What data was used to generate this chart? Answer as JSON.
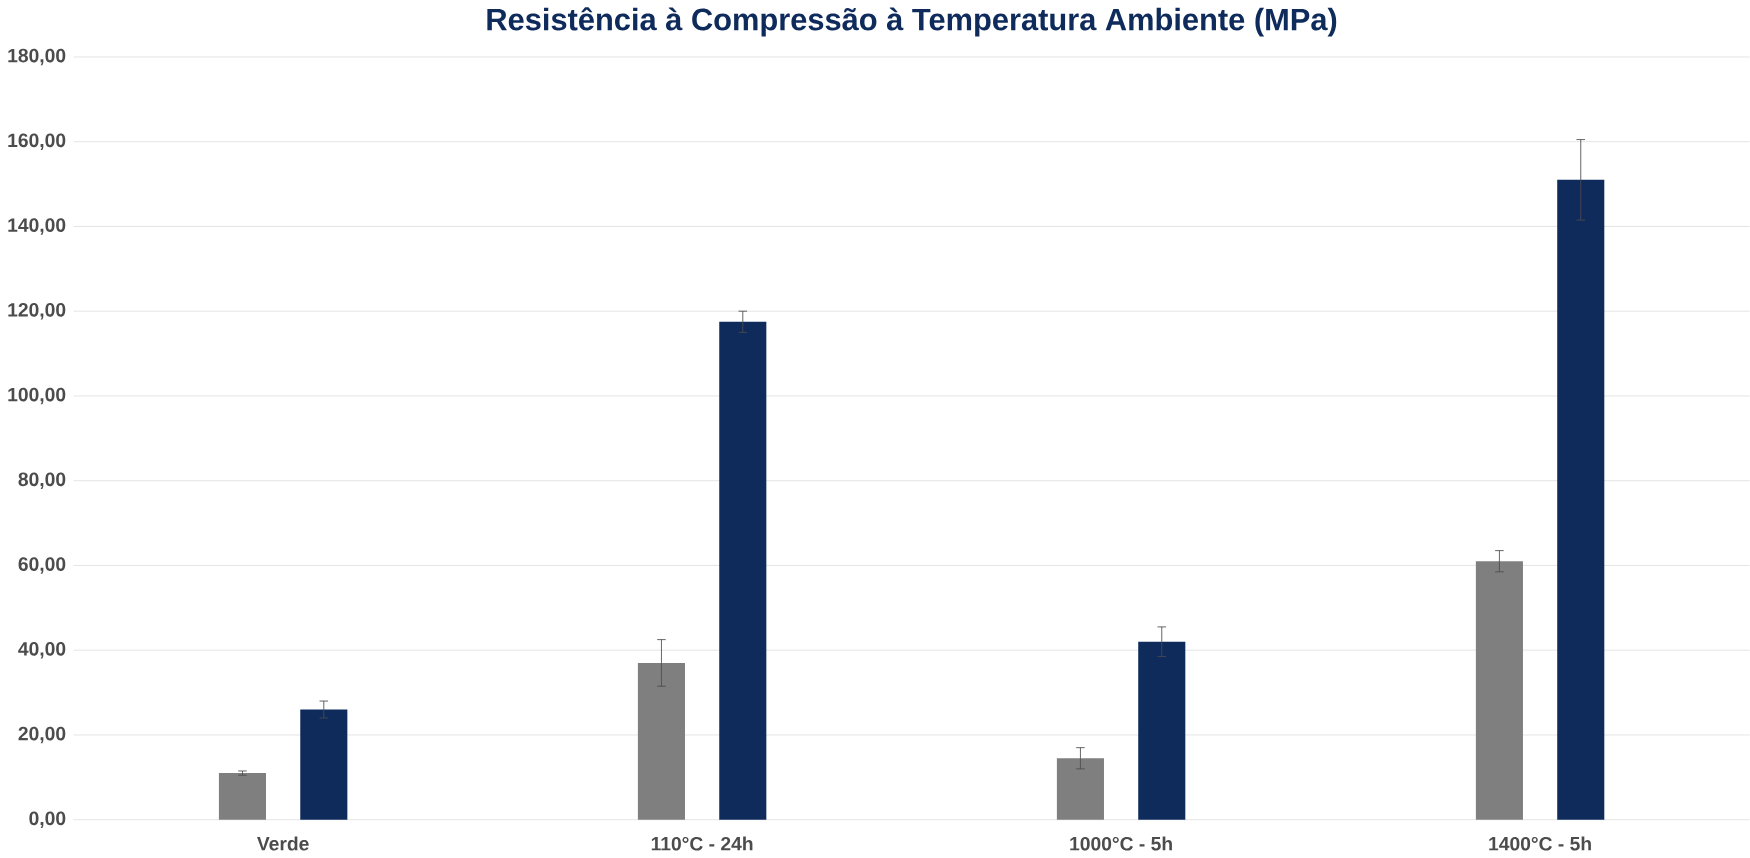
{
  "chart_data": {
    "type": "bar",
    "title": "Resistência à Compressão à Temperatura Ambiente (MPa)",
    "categories": [
      "Verde",
      "110°C - 24h",
      "1000°C - 5h",
      "1400°C - 5h"
    ],
    "series": [
      {
        "color": "#7f7f7f",
        "values": [
          11,
          37,
          14.5,
          61
        ],
        "errors": [
          0.5,
          5.5,
          2.5,
          2.5
        ]
      },
      {
        "color": "#0e2b5c",
        "values": [
          26,
          117.5,
          42,
          151
        ],
        "errors": [
          2,
          2.5,
          3.5,
          9.5
        ]
      }
    ],
    "ylim": [
      0,
      180
    ],
    "yticks": [
      {
        "value": 0,
        "label": "0,00"
      },
      {
        "value": 20,
        "label": "20,00"
      },
      {
        "value": 40,
        "label": "40,00"
      },
      {
        "value": 60,
        "label": "60,00"
      },
      {
        "value": 80,
        "label": "80,00"
      },
      {
        "value": 100,
        "label": "100,00"
      },
      {
        "value": 120,
        "label": "120,00"
      },
      {
        "value": 140,
        "label": "140,00"
      },
      {
        "value": 160,
        "label": "160,00"
      },
      {
        "value": 180,
        "label": "180,00"
      }
    ],
    "grid": "y"
  }
}
